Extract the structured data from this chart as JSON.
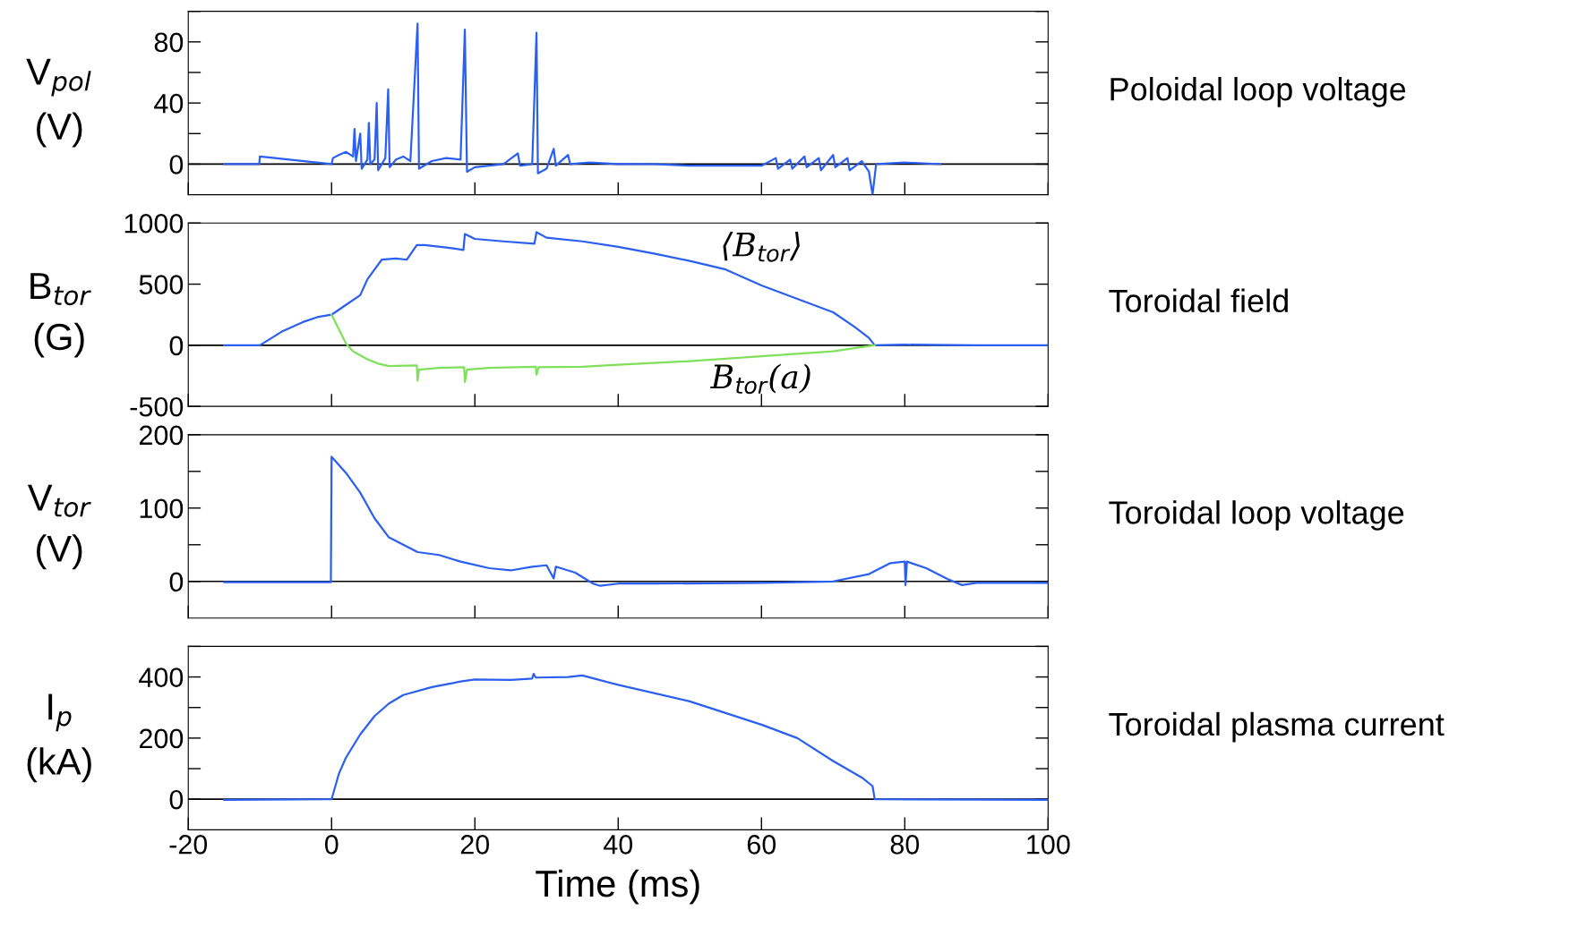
{
  "chart_data": [
    {
      "type": "line",
      "annotations": [
        "Poloidal loop voltage"
      ],
      "ylabel": "V$_{pol}$\n(V)",
      "xlim": [
        -20,
        100
      ],
      "xticks": [
        -20,
        0,
        20,
        40,
        60,
        80,
        100
      ],
      "ylim": [
        -20,
        100
      ],
      "yticks": [
        0,
        {
          "value": 20,
          "label": null
        },
        40,
        {
          "value": 60,
          "label": null
        },
        80,
        {
          "value": 100,
          "label": null
        }
      ],
      "tick_labels": "y",
      "grid": false,
      "legend": false,
      "ref_lines": [
        {
          "axis": "y",
          "value": 0,
          "label": null,
          "color": "#000000"
        }
      ],
      "series": [
        {
          "color": "#2a5ff0",
          "x": [
            -15,
            -10.1,
            -10,
            0,
            0.2,
            1,
            2,
            3,
            3.2,
            3.4,
            4,
            4.2,
            5,
            5.2,
            5.4,
            6,
            6.3,
            6.5,
            7.5,
            7.9,
            8.1,
            9,
            10,
            11,
            12,
            12.2,
            14,
            16,
            18,
            18.6,
            18.9,
            20,
            22,
            24,
            26,
            26.3,
            28,
            28.6,
            28.8,
            30,
            31,
            31.3,
            33,
            33.3,
            36,
            40,
            45,
            50,
            55,
            60,
            62,
            62.3,
            64,
            64.3,
            66,
            66.3,
            68,
            68.3,
            70,
            70.3,
            72,
            72.3,
            74,
            75,
            75.5,
            76,
            80,
            85
          ],
          "values": [
            0,
            0,
            5,
            0,
            4,
            6,
            8,
            5,
            23,
            2,
            20,
            -3,
            3,
            27,
            0,
            3,
            40,
            -4,
            4,
            49,
            -2,
            3,
            5,
            2,
            92,
            -3,
            2,
            4,
            3,
            88,
            -5,
            -2,
            -1,
            0,
            7,
            -1,
            0,
            86,
            -6,
            -3,
            10,
            -1,
            6,
            0,
            1,
            0,
            0,
            -1,
            -1,
            -1,
            4,
            -3,
            3,
            -3,
            5,
            -2,
            4,
            -4,
            6,
            -2,
            4,
            -4,
            2,
            -5,
            -20,
            0,
            1,
            0
          ]
        }
      ]
    },
    {
      "type": "line",
      "annotations": [
        "Toroidal field"
      ],
      "ylabel": "B$_{tor}$\n(G)",
      "xlim": [
        -20,
        100
      ],
      "xticks": [
        -20,
        0,
        20,
        40,
        60,
        80,
        100
      ],
      "ylim": [
        -500,
        1000
      ],
      "yticks": [
        -500,
        0,
        500,
        1000
      ],
      "tick_labels": "y",
      "grid": false,
      "legend": false,
      "ref_lines": [
        {
          "axis": "y",
          "value": 0,
          "label": null,
          "color": "#000000"
        }
      ],
      "series": [
        {
          "name": "⟨B$_{tor}$⟩",
          "color": "#2a5ff0",
          "x": [
            -15,
            -10,
            -7,
            -4,
            -2,
            0,
            2,
            4,
            5,
            6,
            7,
            9,
            10.5,
            11.9,
            13,
            16,
            18.4,
            18.6,
            20,
            24,
            28.3,
            28.6,
            30,
            35,
            40,
            45,
            50,
            55,
            60,
            65,
            70,
            73,
            75,
            75.8,
            80,
            90,
            100
          ],
          "values": [
            0,
            0,
            110,
            190,
            230,
            250,
            330,
            410,
            540,
            620,
            700,
            710,
            700,
            820,
            820,
            800,
            780,
            910,
            870,
            850,
            830,
            925,
            880,
            850,
            805,
            750,
            690,
            620,
            490,
            380,
            270,
            150,
            60,
            0,
            5,
            0,
            0
          ]
        },
        {
          "name": "B$_{tor}$(a)",
          "color": "#7fe05a",
          "x": [
            0,
            2,
            3,
            5,
            6.5,
            8,
            11.9,
            12,
            12.2,
            15,
            18.5,
            18.6,
            18.9,
            22,
            28.5,
            28.6,
            28.9,
            35,
            40,
            50,
            60,
            70,
            75.8
          ],
          "values": [
            250,
            15,
            -50,
            -115,
            -150,
            -170,
            -165,
            -290,
            -200,
            -185,
            -180,
            -300,
            -200,
            -185,
            -175,
            -240,
            -180,
            -175,
            -160,
            -130,
            -90,
            -50,
            0
          ]
        }
      ]
    },
    {
      "type": "line",
      "annotations": [
        "Toroidal loop voltage"
      ],
      "ylabel": "V$_{tor}$\n(V)",
      "xlim": [
        -20,
        100
      ],
      "xticks": [
        -20,
        0,
        20,
        40,
        60,
        80,
        100
      ],
      "ylim": [
        -50,
        200
      ],
      "yticks": [
        0,
        {
          "value": 50,
          "label": null
        },
        100,
        {
          "value": 150,
          "label": null
        },
        200
      ],
      "tick_labels": "y",
      "grid": false,
      "legend": false,
      "ref_lines": [
        {
          "axis": "y",
          "value": 0,
          "label": null,
          "color": "#000000"
        }
      ],
      "series": [
        {
          "color": "#2a5ff0",
          "x": [
            -15,
            -0.1,
            0,
            2,
            4,
            6,
            8,
            10,
            12,
            15,
            18,
            22,
            25,
            28,
            30,
            31,
            31.3,
            32,
            34,
            36.5,
            37.5,
            40,
            45,
            60,
            70,
            75,
            78,
            80,
            80.1,
            80.3,
            83,
            86,
            88,
            90,
            100
          ],
          "values": [
            -1,
            -1,
            170,
            148,
            121,
            86,
            60,
            50,
            40,
            36,
            27,
            18,
            15,
            20,
            22,
            4,
            20,
            18,
            12,
            -3,
            -6,
            -3,
            -3,
            -2,
            0,
            10,
            25,
            27,
            -5,
            27,
            18,
            3,
            -5,
            -2,
            -2
          ]
        }
      ]
    },
    {
      "type": "line",
      "annotations": [
        "Toroidal plasma current"
      ],
      "ylabel": "I$_{p}$\n(kA)",
      "xlabel": "Time (ms)",
      "xlim": [
        -20,
        100
      ],
      "xticks": [
        -20,
        0,
        20,
        40,
        60,
        80,
        100
      ],
      "ylim": [
        -100,
        500
      ],
      "yticks": [
        0,
        {
          "value": 100,
          "label": null
        },
        200,
        {
          "value": 300,
          "label": null
        },
        400,
        {
          "value": 500,
          "label": null
        }
      ],
      "grid": false,
      "legend": false,
      "ref_lines": [
        {
          "axis": "y",
          "value": 0,
          "label": null,
          "color": "#000000"
        }
      ],
      "series": [
        {
          "color": "#2a5ff0",
          "x": [
            -15,
            0,
            1,
            2,
            4,
            6,
            8,
            10,
            14,
            18,
            20,
            25,
            28,
            28.2,
            28.5,
            33,
            35,
            40,
            50,
            60,
            65,
            70,
            74,
            75.5,
            75.8,
            100
          ],
          "values": [
            -2,
            0,
            82,
            136,
            212,
            272,
            313,
            341,
            367,
            385,
            392,
            390,
            395,
            410,
            398,
            400,
            405,
            374,
            320,
            244,
            200,
            125,
            71,
            43,
            0,
            -2
          ]
        }
      ]
    }
  ]
}
